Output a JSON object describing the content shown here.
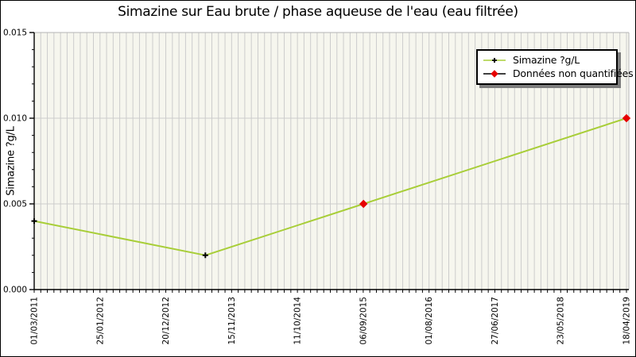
{
  "title": "Simazine sur Eau brute / phase aqueuse de l'eau (eau filtrée)",
  "legend": {
    "items": [
      {
        "label": "Simazine ?g/L",
        "marker": "plus",
        "line_color": "#a8ce38",
        "marker_color": "#000000"
      },
      {
        "label": "Données non quantifiées",
        "marker": "diamond",
        "line_color": "#000000",
        "marker_color": "#e60000"
      }
    ]
  },
  "colors": {
    "plot_bg": "#f6f6ee",
    "gridline": "#cccccc",
    "frame_gray": "#b4b4b4",
    "axis_black": "#000000",
    "series_line": "#a8ce38",
    "quantified_marker": "#000000",
    "non_quantified_marker": "#e60000",
    "legend_shadow": "#7d7d7d",
    "text": "#000000"
  },
  "chart_data": {
    "type": "line",
    "title": "Simazine sur Eau brute / phase aqueuse de l'eau (eau filtrée)",
    "xlabel": "",
    "ylabel": "Simazine ?g/L",
    "ylim": [
      0,
      0.015
    ],
    "y_ticks": [
      0,
      0.005,
      0.01,
      0.015
    ],
    "y_tick_labels": [
      "0.000",
      "0.005",
      "0.010",
      "0.015"
    ],
    "y_minor_step": 0.001,
    "x_tick_labels": [
      "01/03/2011",
      "25/01/2012",
      "20/12/2012",
      "15/11/2013",
      "11/10/2014",
      "06/09/2015",
      "01/08/2016",
      "27/06/2017",
      "23/05/2018",
      "18/04/2019"
    ],
    "x_minor_intervals": 90,
    "grid": "vertical-minor + horizontal-major",
    "legend_position": "top-right",
    "series": [
      {
        "name": "Simazine ?g/L",
        "color": "#a8ce38",
        "points": [
          {
            "date": "01/03/2011",
            "x_frac": 0.0,
            "value": 0.004,
            "quantified": true
          },
          {
            "date": "mi-2013",
            "x_frac": 0.289,
            "value": 0.002,
            "quantified": true
          },
          {
            "date": "06/09/2015",
            "x_frac": 0.556,
            "value": 0.005,
            "quantified": false
          },
          {
            "date": "18/04/2019",
            "x_frac": 1.0,
            "value": 0.01,
            "quantified": false
          }
        ]
      }
    ]
  }
}
